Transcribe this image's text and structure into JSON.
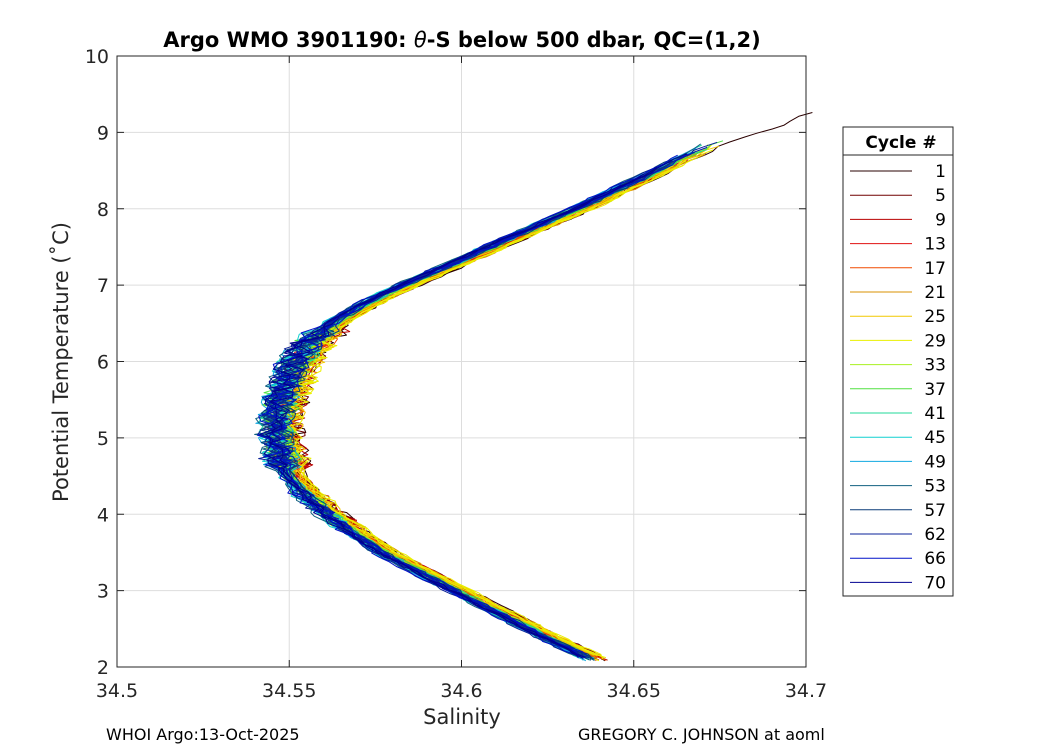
{
  "chart_data": {
    "type": "line",
    "title_prefix": "Argo WMO 3901190: ",
    "title_theta": "θ",
    "title_suffix": "-S below 500 dbar,  QC=(1,2)",
    "xlabel": "Salinity",
    "ylabel": "Potential Temperature (˚C)",
    "xlim": [
      34.5,
      34.7
    ],
    "ylim": [
      2,
      10
    ],
    "xticks": [
      34.5,
      34.55,
      34.6,
      34.65,
      34.7
    ],
    "xtick_labels": [
      "34.5",
      "34.55",
      "34.6",
      "34.65",
      "34.7"
    ],
    "yticks": [
      2,
      3,
      4,
      5,
      6,
      7,
      8,
      9,
      10
    ],
    "ytick_labels": [
      "2",
      "3",
      "4",
      "5",
      "6",
      "7",
      "8",
      "9",
      "10"
    ],
    "grid": true,
    "legend": {
      "title": "Cycle #",
      "position": "right-outside",
      "entries": [
        {
          "label": "1",
          "color": "#2a0000"
        },
        {
          "label": "5",
          "color": "#700000"
        },
        {
          "label": "9",
          "color": "#b80000"
        },
        {
          "label": "13",
          "color": "#e01010"
        },
        {
          "label": "17",
          "color": "#f04a00"
        },
        {
          "label": "21",
          "color": "#d89000"
        },
        {
          "label": "25",
          "color": "#f2c800"
        },
        {
          "label": "29",
          "color": "#eaf000"
        },
        {
          "label": "33",
          "color": "#a8f020"
        },
        {
          "label": "37",
          "color": "#50e040"
        },
        {
          "label": "41",
          "color": "#20d898"
        },
        {
          "label": "45",
          "color": "#10d0d0"
        },
        {
          "label": "49",
          "color": "#10a8e0"
        },
        {
          "label": "53",
          "color": "#106080"
        },
        {
          "label": "57",
          "color": "#0a3c78"
        },
        {
          "label": "62",
          "color": "#0a2098"
        },
        {
          "label": "66",
          "color": "#0010c8"
        },
        {
          "label": "70",
          "color": "#000090"
        }
      ]
    },
    "mean_profile": {
      "salinity": [
        34.639,
        34.625,
        34.61,
        34.595,
        34.58,
        34.568,
        34.558,
        34.551,
        34.548,
        34.547,
        34.549,
        34.552,
        34.557,
        34.565,
        34.577,
        34.592,
        34.607,
        34.622,
        34.637,
        34.651,
        34.664,
        34.676,
        34.69,
        34.7
      ],
      "theta": [
        2.1,
        2.4,
        2.75,
        3.1,
        3.45,
        3.8,
        4.15,
        4.5,
        4.85,
        5.2,
        5.55,
        5.9,
        6.25,
        6.55,
        6.85,
        7.15,
        7.45,
        7.75,
        8.05,
        8.35,
        8.65,
        8.9,
        9.1,
        9.3
      ]
    }
  },
  "footer": {
    "left": "WHOI Argo:13-Oct-2025",
    "right": "GREGORY C. JOHNSON at aoml"
  }
}
